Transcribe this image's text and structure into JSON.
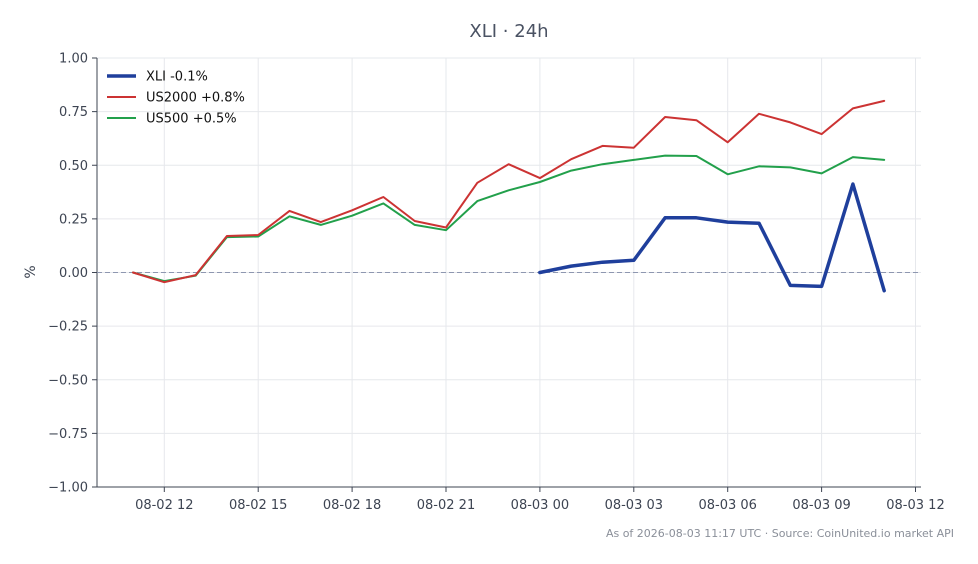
{
  "chart_data": {
    "type": "line",
    "title": "XLI · 24h",
    "xlabel": "",
    "ylabel": "%",
    "ylim": [
      -1.0,
      1.0
    ],
    "yticks": [
      "1.00",
      "0.75",
      "0.50",
      "0.25",
      "0.00",
      "−0.25",
      "−0.50",
      "−0.75",
      "−1.00"
    ],
    "ytick_values": [
      1.0,
      0.75,
      0.5,
      0.25,
      0.0,
      -0.25,
      -0.5,
      -0.75,
      -1.0
    ],
    "xtick_labels": [
      "08-02 12",
      "08-02 15",
      "08-02 18",
      "08-02 21",
      "08-03 00",
      "08-03 03",
      "08-03 06",
      "08-03 09",
      "08-03 12"
    ],
    "x": [
      "08-02 11",
      "08-02 12",
      "08-02 13",
      "08-02 14",
      "08-02 15",
      "08-02 16",
      "08-02 17",
      "08-02 18",
      "08-02 19",
      "08-02 20",
      "08-02 21",
      "08-02 22",
      "08-02 23",
      "08-03 00",
      "08-03 01",
      "08-03 02",
      "08-03 03",
      "08-03 04",
      "08-03 05",
      "08-03 06",
      "08-03 07",
      "08-03 08",
      "08-03 09",
      "08-03 10",
      "08-03 11"
    ],
    "grid": true,
    "legend_position": "top-left",
    "reference_line": 0,
    "series": [
      {
        "name": "XLI -0.1%",
        "color": "#1f3f9c",
        "values": [
          null,
          null,
          null,
          null,
          null,
          null,
          null,
          null,
          null,
          null,
          null,
          null,
          null,
          0.0,
          0.03,
          0.048,
          0.057,
          0.255,
          0.255,
          0.235,
          0.23,
          -0.06,
          -0.065,
          0.412,
          -0.085
        ]
      },
      {
        "name": "US2000 +0.8%",
        "color": "#cc3333",
        "values": [
          0.0,
          -0.045,
          -0.012,
          0.17,
          0.175,
          0.287,
          0.235,
          0.29,
          0.352,
          0.24,
          0.21,
          0.418,
          0.505,
          0.44,
          0.528,
          0.59,
          0.582,
          0.725,
          0.71,
          0.607,
          0.74,
          0.7,
          0.645,
          0.765,
          0.8
        ]
      },
      {
        "name": "US500 +0.5%",
        "color": "#22a04b",
        "values": [
          0.0,
          -0.04,
          -0.015,
          0.165,
          0.168,
          0.262,
          0.222,
          0.265,
          0.322,
          0.222,
          0.197,
          0.333,
          0.383,
          0.422,
          0.475,
          0.505,
          0.525,
          0.545,
          0.543,
          0.458,
          0.495,
          0.49,
          0.462,
          0.538,
          0.525
        ]
      }
    ]
  },
  "footer": "As of 2026-08-03 11:17 UTC · Source: CoinUnited.io market API"
}
